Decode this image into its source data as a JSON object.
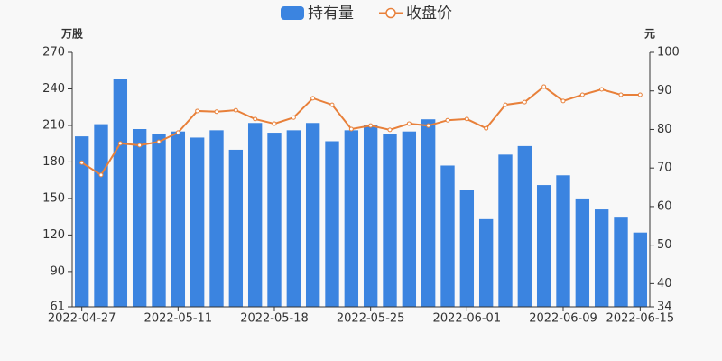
{
  "chart_data": {
    "type": "bar-line",
    "y_label": "万股",
    "y2_label": "元",
    "categories": [
      "2022-04-27",
      null,
      null,
      null,
      null,
      "2022-05-11",
      null,
      null,
      null,
      null,
      "2022-05-18",
      null,
      null,
      null,
      null,
      "2022-05-25",
      null,
      null,
      null,
      null,
      "2022-06-01",
      null,
      null,
      null,
      null,
      "2022-06-09",
      null,
      null,
      null,
      "2022-06-15"
    ],
    "series": [
      {
        "name": "持有量",
        "type": "bar",
        "color": "#3b84e0",
        "values": [
          201,
          211,
          248,
          207,
          203,
          205,
          200,
          206,
          190,
          212,
          204,
          206,
          212,
          197,
          206,
          210,
          203,
          205,
          215,
          177,
          157,
          133,
          186,
          193,
          161,
          169,
          150,
          141,
          135,
          122
        ]
      },
      {
        "name": "收盘价",
        "type": "line",
        "axis": "y2",
        "color": "#e8803a",
        "values": [
          71.4,
          68.2,
          76.4,
          75.9,
          76.8,
          79.2,
          84.8,
          84.6,
          85,
          82.7,
          81.5,
          83.1,
          88.1,
          86.4,
          80.1,
          81,
          79.9,
          81.5,
          81,
          82.4,
          82.7,
          80.3,
          86.4,
          87.1,
          91.1,
          87.4,
          89,
          90.4,
          89,
          89
        ]
      }
    ],
    "ylim": [
      61,
      270
    ],
    "yticks": [
      61,
      90,
      120,
      150,
      180,
      210,
      240,
      270
    ],
    "y2lim": [
      34,
      100
    ],
    "y2ticks": [
      34,
      40,
      50,
      60,
      70,
      80,
      90,
      100
    ],
    "grid": false,
    "legend": "top"
  }
}
